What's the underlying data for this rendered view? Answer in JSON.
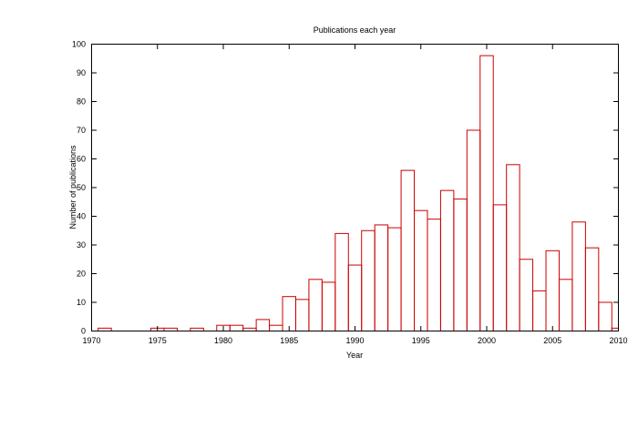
{
  "chart_data": {
    "type": "bar",
    "title": "Publications each year",
    "xlabel": "Year",
    "ylabel": "Number of publications",
    "xlim": [
      1970,
      2010
    ],
    "ylim": [
      0,
      100
    ],
    "xticks": [
      1970,
      1975,
      1980,
      1985,
      1990,
      1995,
      2000,
      2005,
      2010
    ],
    "yticks": [
      0,
      10,
      20,
      30,
      40,
      50,
      60,
      70,
      80,
      90,
      100
    ],
    "grid": false,
    "legend": "none",
    "bar_style": "outline",
    "bar_color": "#cc0000",
    "series": [
      {
        "x": [
          1971,
          1972,
          1973,
          1974,
          1975,
          1976,
          1977,
          1978,
          1979,
          1980,
          1981,
          1982,
          1983,
          1984,
          1985,
          1986,
          1987,
          1988,
          1989,
          1990,
          1991,
          1992,
          1993,
          1994,
          1995,
          1996,
          1997,
          1998,
          1999,
          2000,
          2001,
          2002,
          2003,
          2004,
          2005,
          2006,
          2007,
          2008,
          2009,
          2010
        ],
        "values": [
          1,
          0,
          0,
          0,
          1,
          1,
          0,
          1,
          0,
          2,
          2,
          1,
          4,
          2,
          12,
          11,
          18,
          17,
          34,
          23,
          35,
          37,
          36,
          56,
          42,
          39,
          49,
          46,
          70,
          96,
          44,
          58,
          25,
          14,
          28,
          18,
          38,
          29,
          10,
          1
        ]
      }
    ]
  }
}
